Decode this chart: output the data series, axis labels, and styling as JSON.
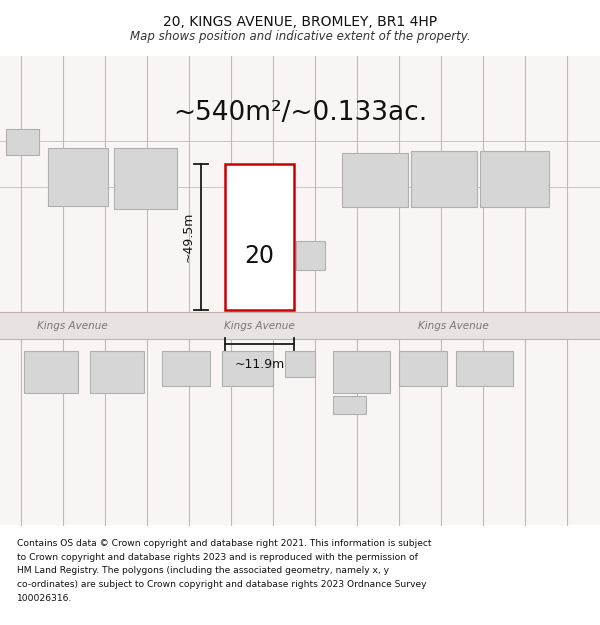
{
  "title_line1": "20, KINGS AVENUE, BROMLEY, BR1 4HP",
  "title_line2": "Map shows position and indicative extent of the property.",
  "area_text": "~540m²/~0.133ac.",
  "label_20": "20",
  "dim_height": "~49.5m",
  "dim_width": "~11.9m",
  "road_name_left": "Kings Avenue",
  "road_name_center": "Kings Avenue",
  "road_name_right": "Kings Avenue",
  "footer_lines": [
    "Contains OS data © Crown copyright and database right 2021. This information is subject",
    "to Crown copyright and database rights 2023 and is reproduced with the permission of",
    "HM Land Registry. The polygons (including the associated geometry, namely x, y",
    "co-ordinates) are subject to Crown copyright and database rights 2023 Ordnance Survey",
    "100026316."
  ],
  "bg_color": "#ffffff",
  "map_bg": "#faf5f5",
  "road_fill": "#e8e2e0",
  "plot_line_color": "#cc0000",
  "dim_line_color": "#1a1a1a",
  "neighbor_fill": "#d6d6d6",
  "neighbor_edge": "#b0b0b0",
  "plot_fill": "#ffffff",
  "vline_color": "#e09090",
  "hline_color": "#e09090"
}
